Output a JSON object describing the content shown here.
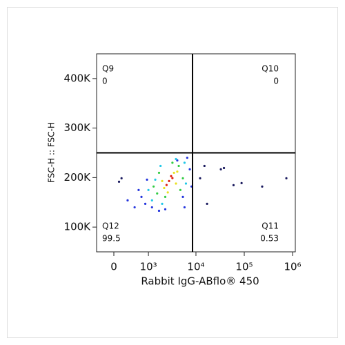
{
  "chart_data": {
    "type": "scatter",
    "xlabel": "Rabbit IgG-ABflo® 450",
    "ylabel": "FSC-H :: FSC-H",
    "xscale": "biexponential",
    "xlim": [
      -367,
      1140000
    ],
    "ylim": [
      50000,
      450000
    ],
    "xticks": [
      0,
      {
        "value": 1000,
        "label": "10³"
      },
      {
        "value": 10000,
        "label": "10⁴"
      },
      {
        "value": 100000,
        "label": "10⁵"
      },
      {
        "value": 1000000,
        "label": "10⁶"
      }
    ],
    "yticks": [
      {
        "value": 100000,
        "label": "100K"
      },
      {
        "value": 200000,
        "label": "200K"
      },
      {
        "value": 300000,
        "label": "300K"
      },
      {
        "value": 400000,
        "label": "400K"
      }
    ],
    "gate": {
      "x": 8500,
      "y": 250000
    },
    "quadrants": [
      {
        "name": "Q9",
        "value": 0,
        "position": "top-left"
      },
      {
        "name": "Q10",
        "value": 0,
        "position": "top-right"
      },
      {
        "name": "Q11",
        "value": 0.53,
        "position": "bottom-right"
      },
      {
        "name": "Q12",
        "value": 99.5,
        "position": "bottom-left"
      }
    ],
    "series": [
      {
        "color": "#1a1a5e",
        "x": [
          12200,
          32800,
          60000,
          88000,
          235000,
          744000,
          150,
          100,
          17000,
          38000,
          15000
        ],
        "y": [
          198600,
          216700,
          184700,
          188900,
          181900,
          198600,
          198600,
          191700,
          147000,
          219400,
          223600
        ]
      },
      {
        "color": "#2233dd",
        "x": [
          850,
          692,
          6600,
          7450,
          590,
          1200,
          2300,
          5360,
          930,
          4100,
          282,
          8100,
          464,
          1700,
          5800
        ],
        "y": [
          147000,
          161000,
          240000,
          216700,
          175000,
          140000,
          136000,
          161000,
          195800,
          234700,
          154000,
          182000,
          140000,
          133000,
          140000
        ]
      },
      {
        "color": "#22c8e8",
        "x": [
          1200,
          5800,
          1000,
          6200,
          1980,
          3852,
          1412,
          1830
        ],
        "y": [
          154000,
          230000,
          175000,
          188000,
          147000,
          237500,
          195800,
          223600
        ]
      },
      {
        "color": "#33cc44",
        "x": [
          1550,
          4400,
          1700,
          4750,
          2300,
          3250,
          1300,
          5360
        ],
        "y": [
          168000,
          223600,
          209700,
          175000,
          161000,
          230000,
          182000,
          198600
        ]
      },
      {
        "color": "#e8e020",
        "x": [
          2180,
          3500,
          1980,
          3852,
          2600,
          4100
        ],
        "y": [
          179000,
          209700,
          193000,
          188000,
          170000,
          212000
        ]
      },
      {
        "color": "#e02010",
        "x": [
          2764,
          3250,
          2450,
          3050
        ],
        "y": [
          193000,
          199000,
          185000,
          203000
        ]
      }
    ]
  }
}
